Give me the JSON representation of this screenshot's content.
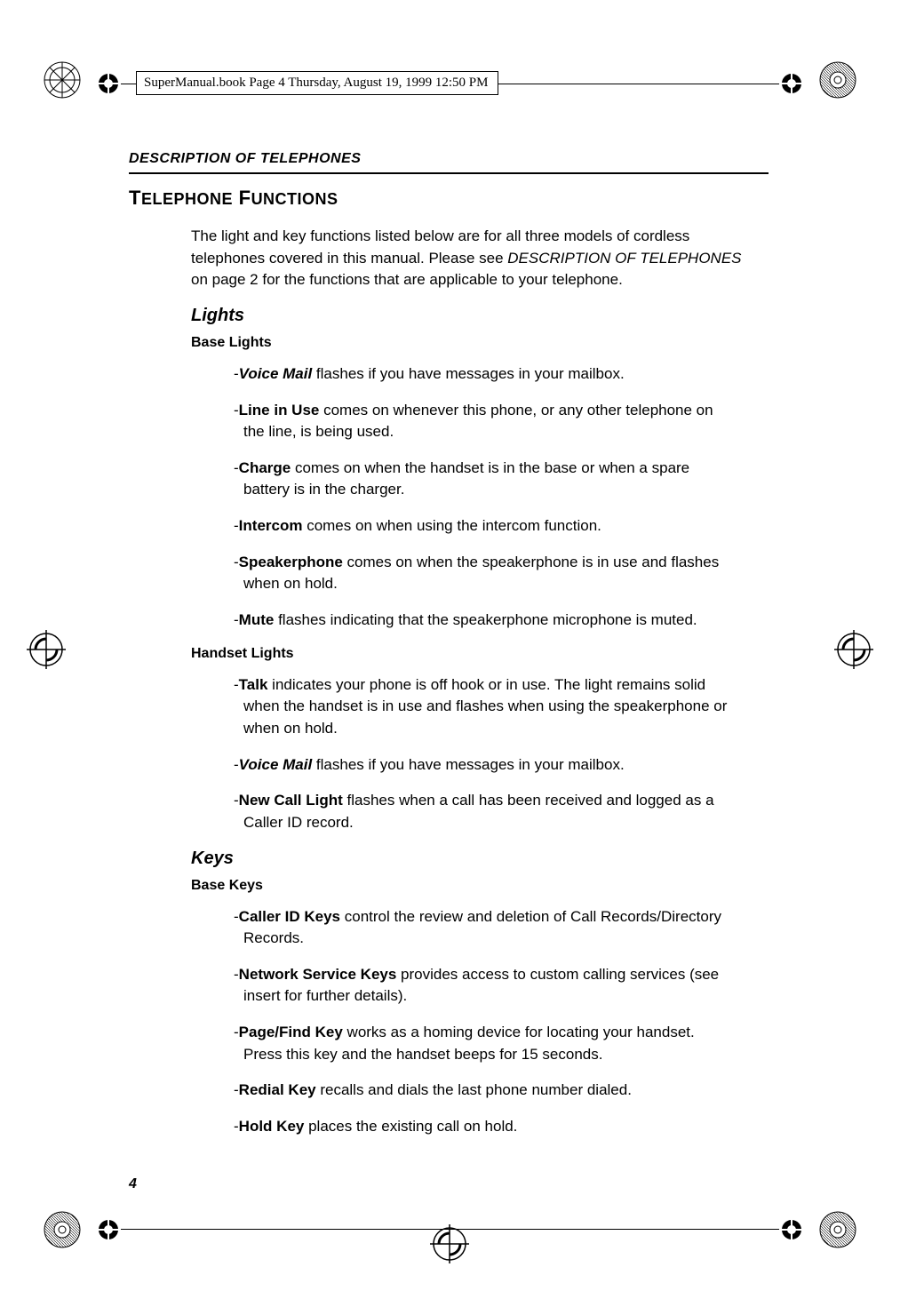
{
  "header": {
    "stamp": "SuperManual.book  Page 4  Thursday, August 19, 1999  12:50 PM"
  },
  "running_head": "DESCRIPTION OF TELEPHONES",
  "section_title": {
    "big1": "T",
    "rest1": "ELEPHONE",
    "big2": "F",
    "rest2": "UNCTIONS"
  },
  "intro": {
    "pre": "The light and key functions listed below are for all three models of cordless telephones covered in this manual. Please see ",
    "ital": "DESCRIPTION OF TELEPHONES",
    "mid": " on page 2 ",
    "post": "for the functions that are applicable to your telephone."
  },
  "lights": {
    "heading": "Lights",
    "base": {
      "heading": "Base Lights",
      "items": [
        {
          "dash": "-",
          "lead": "Voice Mail",
          "lead_style": "bi",
          "rest": " flashes if you have messages in your mailbox."
        },
        {
          "dash": "-",
          "lead": "Line in Use",
          "lead_style": "b",
          "rest": " comes on whenever this phone, or any other telephone on the line, is being used."
        },
        {
          "dash": "-",
          "lead": "Charge",
          "lead_style": "b",
          "rest": " comes on when the handset is in the base or when a spare battery is in the charger."
        },
        {
          "dash": "-",
          "lead": "Intercom",
          "lead_style": "b",
          "rest": " comes on when using the intercom function."
        },
        {
          "dash": "-",
          "lead": "Speakerphone",
          "lead_style": "b",
          "rest": " comes on when the speakerphone is in use and flashes when on hold."
        },
        {
          "dash": "-",
          "lead": "Mute",
          "lead_style": "b",
          "rest": " flashes indicating that the speakerphone microphone is muted."
        }
      ]
    },
    "handset": {
      "heading": "Handset Lights",
      "items": [
        {
          "dash": "-",
          "lead": "Talk",
          "lead_style": "b",
          "rest": " indicates your phone is off hook or in use. The light remains solid when the handset is in use and flashes when using the speakerphone or when on hold."
        },
        {
          "dash": "-",
          "lead": "Voice Mail",
          "lead_style": "bi",
          "rest": " flashes if you have messages in your mailbox."
        },
        {
          "dash": "-",
          "lead": "New Call Light",
          "lead_style": "b",
          "rest": " flashes when a call has been received and logged as a Caller ID record."
        }
      ]
    }
  },
  "keys": {
    "heading": "Keys",
    "base": {
      "heading": "Base Keys",
      "items": [
        {
          "dash": "-",
          "lead": "Caller ID Keys",
          "lead_style": "b",
          "rest": " control the review and deletion of Call Records/Directory Records."
        },
        {
          "dash": "-",
          "lead": "Network Service Keys",
          "lead_style": "b",
          "rest": " provides access to custom calling services (see insert for further details)."
        },
        {
          "dash": "-",
          "lead": "Page/Find Key",
          "lead_style": "b",
          "rest": " works as a homing device for locating your handset. Press this key and the handset beeps for 15 seconds."
        },
        {
          "dash": "-",
          "lead": "Redial Key",
          "lead_style": "b",
          "rest": " recalls and dials the last phone number dialed."
        },
        {
          "dash": "-",
          "lead": "Hold Key",
          "lead_style": "b",
          "rest": " places the existing call on hold."
        }
      ]
    }
  },
  "page_number": "4",
  "colors": {
    "text": "#000000",
    "bg": "#ffffff"
  }
}
